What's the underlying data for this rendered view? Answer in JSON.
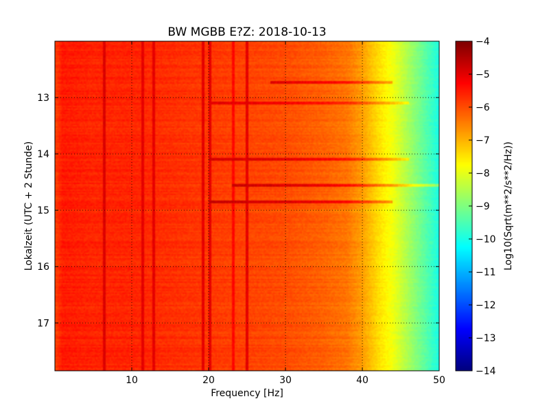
{
  "chart_data": {
    "type": "heatmap",
    "title": "BW MGBB E?Z: 2018-10-13",
    "xlabel": "Frequency [Hz]",
    "ylabel": "Lokalzeit (UTC + 2 Stunde)",
    "colorbar_label": "Log10(Sqrt(m**2/s**2/Hz))",
    "colormap": "jet",
    "xlim": [
      0,
      50
    ],
    "ylim": [
      12.0,
      17.85
    ],
    "y_inverted": true,
    "clim": [
      -14,
      -4
    ],
    "grid": true,
    "x_ticks": [
      10,
      20,
      30,
      40,
      50
    ],
    "y_ticks": [
      13,
      14,
      15,
      16,
      17
    ],
    "colorbar_ticks": [
      -4,
      -5,
      -6,
      -7,
      -8,
      -9,
      -10,
      -11,
      -12,
      -13,
      -14
    ],
    "baseline_profile": {
      "freq_hz": [
        0,
        1,
        5,
        10,
        20,
        30,
        35,
        38,
        40,
        42,
        44,
        46,
        48,
        50
      ],
      "log_amplitude": [
        -5.9,
        -5.5,
        -5.6,
        -5.6,
        -5.8,
        -6.0,
        -6.2,
        -6.4,
        -6.8,
        -7.4,
        -7.9,
        -8.6,
        -9.3,
        -10.0
      ]
    },
    "vertical_lines": [
      {
        "freq_hz": 6.5,
        "log_amplitude": -4.9
      },
      {
        "freq_hz": 11.5,
        "log_amplitude": -5.0
      },
      {
        "freq_hz": 12.9,
        "log_amplitude": -5.0
      },
      {
        "freq_hz": 19.3,
        "log_amplitude": -5.0
      },
      {
        "freq_hz": 20.2,
        "log_amplitude": -5.0
      },
      {
        "freq_hz": 23.3,
        "log_amplitude": -5.3
      },
      {
        "freq_hz": 25.0,
        "log_amplitude": -5.0
      }
    ],
    "horizontal_bands": [
      {
        "time_h": 12.73,
        "from_hz": 28,
        "to_hz": 44,
        "log_amplitude": -5.2
      },
      {
        "time_h": 13.1,
        "from_hz": 20,
        "to_hz": 46,
        "log_amplitude": -5.4
      },
      {
        "time_h": 14.1,
        "from_hz": 20,
        "to_hz": 46,
        "log_amplitude": -5.2
      },
      {
        "time_h": 14.55,
        "from_hz": 23,
        "to_hz": 50,
        "log_amplitude": -5.1
      },
      {
        "time_h": 14.85,
        "from_hz": 20,
        "to_hz": 44,
        "log_amplitude": -5.1
      }
    ]
  }
}
